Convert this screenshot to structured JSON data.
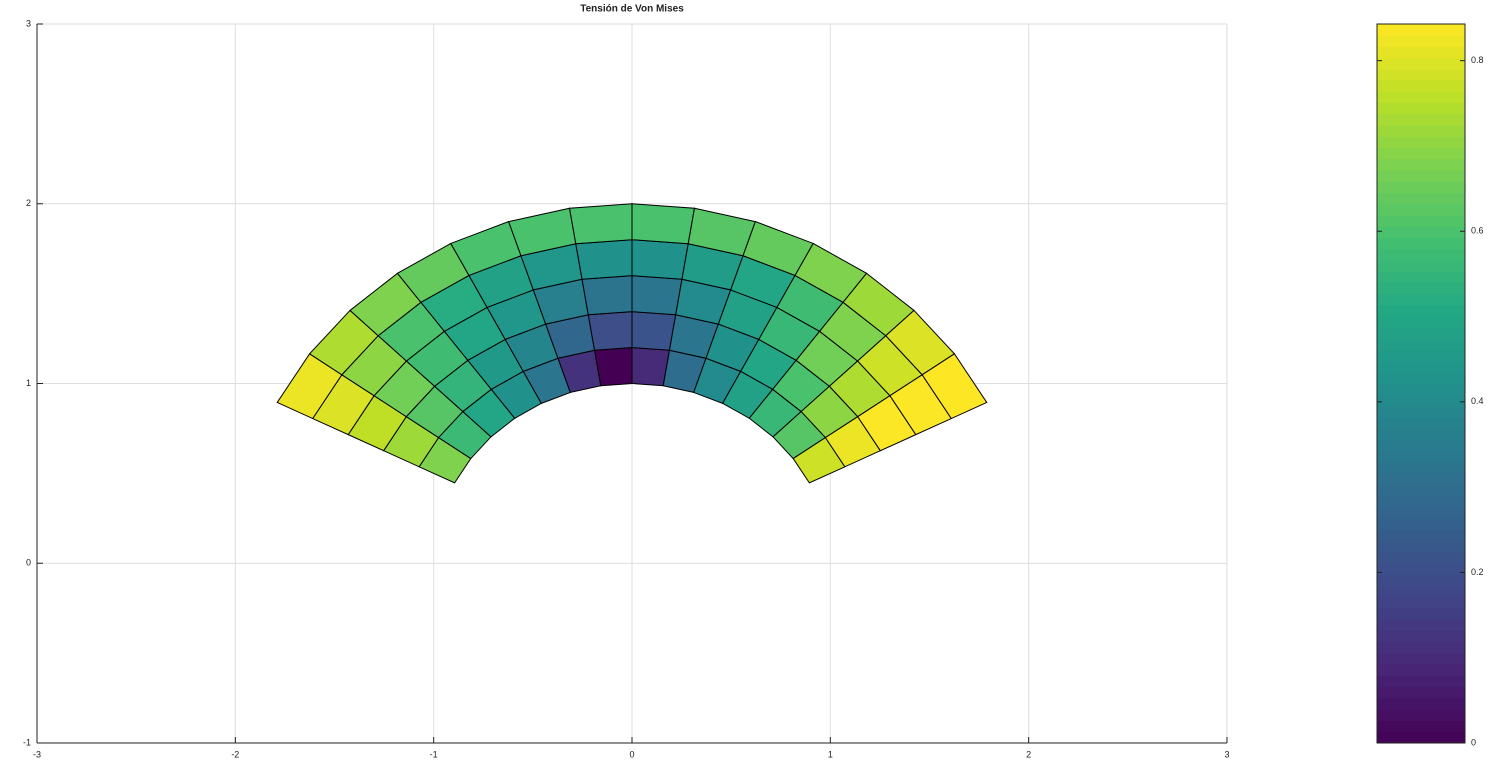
{
  "chart_data": {
    "type": "patch",
    "title": "Tensión de Von Mises",
    "xlim": [
      -3,
      3
    ],
    "xticks": [
      -3,
      -2,
      -1,
      0,
      1,
      2,
      3
    ],
    "ylim": [
      -1,
      3
    ],
    "yticks": [
      -1,
      0,
      1,
      2,
      3
    ],
    "grid": true,
    "radii": [
      1,
      1.2,
      1.4,
      1.6,
      1.8,
      2
    ],
    "angles_deg": [
      153.43,
      144.37,
      135.31,
      126.25,
      117.18,
      108.12,
      99.06,
      90,
      80.94,
      71.88,
      62.82,
      53.75,
      44.69,
      35.63,
      26.57
    ],
    "values": [
      [
        0.68,
        0.57,
        0.5,
        0.42,
        0.33,
        0.12,
        0.0,
        0.1,
        0.3,
        0.4,
        0.48,
        0.56,
        0.62,
        0.78
      ],
      [
        0.72,
        0.62,
        0.55,
        0.45,
        0.38,
        0.28,
        0.2,
        0.22,
        0.33,
        0.42,
        0.5,
        0.6,
        0.7,
        0.82
      ],
      [
        0.76,
        0.66,
        0.58,
        0.5,
        0.44,
        0.36,
        0.32,
        0.33,
        0.4,
        0.48,
        0.56,
        0.66,
        0.74,
        0.84
      ],
      [
        0.8,
        0.7,
        0.6,
        0.52,
        0.48,
        0.44,
        0.42,
        0.42,
        0.46,
        0.5,
        0.58,
        0.68,
        0.78,
        0.84
      ],
      [
        0.82,
        0.74,
        0.68,
        0.64,
        0.6,
        0.6,
        0.6,
        0.6,
        0.62,
        0.64,
        0.68,
        0.72,
        0.8,
        0.843
      ]
    ],
    "colormap": "viridis",
    "clim": [
      0,
      0.843
    ],
    "cticks": [
      0,
      0.2,
      0.4,
      0.6,
      0.8
    ]
  }
}
